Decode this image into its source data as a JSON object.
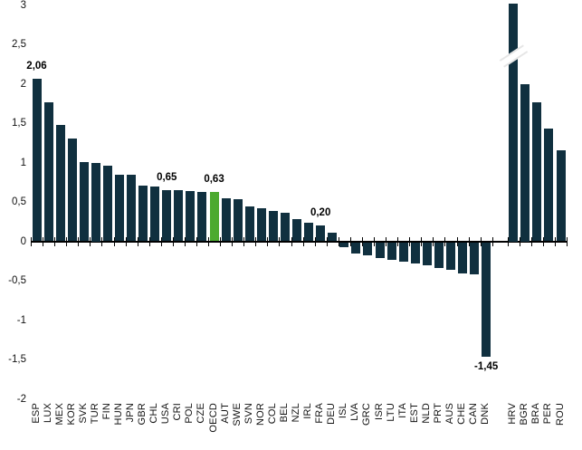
{
  "chart_data": {
    "type": "bar",
    "title": "",
    "categories": [
      "ESP",
      "LUX",
      "MEX",
      "KOR",
      "SVK",
      "TUR",
      "FIN",
      "HUN",
      "JPN",
      "GBR",
      "CHL",
      "USA",
      "CRI",
      "POL",
      "CZE",
      "OECD",
      "AUT",
      "SWE",
      "SVN",
      "NOR",
      "COL",
      "BEL",
      "NZL",
      "IRL",
      "FRA",
      "DEU",
      "ISL",
      "LVA",
      "GRC",
      "ISR",
      "LTU",
      "ITA",
      "EST",
      "NLD",
      "PRT",
      "AUS",
      "CHE",
      "CAN",
      "DNK",
      "HRV",
      "BGR",
      "BRA",
      "PER",
      "ROU"
    ],
    "values": [
      2.06,
      1.77,
      1.48,
      1.3,
      1.01,
      1.0,
      0.96,
      0.85,
      0.84,
      0.71,
      0.7,
      0.65,
      0.65,
      0.64,
      0.63,
      0.63,
      0.55,
      0.53,
      0.44,
      0.42,
      0.38,
      0.36,
      0.28,
      0.24,
      0.2,
      0.11,
      -0.06,
      -0.14,
      -0.17,
      -0.2,
      -0.22,
      -0.25,
      -0.27,
      -0.29,
      -0.33,
      -0.35,
      -0.4,
      -0.41,
      -1.45,
      3.3,
      2.0,
      1.76,
      1.43,
      1.16
    ],
    "value_labels": {
      "ESP": "2,06",
      "USA": "0,65",
      "OECD": "0,63",
      "FRA": "0,20",
      "DNK": "-1,45"
    },
    "highlight_category": "OECD",
    "highlight_color": "#4caa2f",
    "bar_color": "#10303f",
    "y_axis": {
      "tick_labels": [
        "3",
        "2,5",
        "2",
        "1,5",
        "1",
        "0,5",
        "0",
        "-0,5",
        "-1",
        "-1,5",
        "-2"
      ],
      "min": -2,
      "max": 3,
      "grid": false
    },
    "axis_break": {
      "category": "HRV",
      "meaning": "bar exceeds top of axis (value above 3)"
    },
    "separated_group": [
      "HRV",
      "BGR",
      "BRA",
      "PER",
      "ROU"
    ],
    "decimal_separator": ",",
    "legend": null,
    "xlabel": "",
    "ylabel": ""
  }
}
